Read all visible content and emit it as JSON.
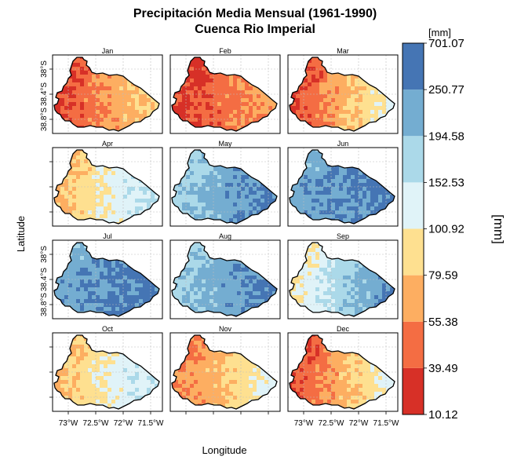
{
  "chart_data": {
    "type": "heatmap",
    "title_lines": [
      "Precipitación Media Mensual (1961-1990)",
      "Cuenca Rio Imperial"
    ],
    "xlabel": "Longitude",
    "ylabel": "Latitude",
    "x_ticks": [
      "73°W",
      "72.5°W",
      "72°W",
      "71.5°W"
    ],
    "y_ticks": [
      "38.8°S",
      "38.4°S",
      "38°S"
    ],
    "panels": [
      "Jan",
      "Feb",
      "Mar",
      "Apr",
      "May",
      "Jun",
      "Jul",
      "Aug",
      "Sep",
      "Oct",
      "Nov",
      "Dec"
    ],
    "grid": "dotted",
    "legend": {
      "position": "right",
      "unit_top": "[mm]",
      "unit_side": "[mm]",
      "breaks": [
        "10.12",
        "39.49",
        "55.38",
        "79.59",
        "100.92",
        "152.53",
        "194.58",
        "250.77",
        "701.07"
      ],
      "colors": [
        "#d73027",
        "#f46d43",
        "#fdae61",
        "#fee090",
        "#e0f3f8",
        "#abd9e9",
        "#74add1",
        "#4575b4"
      ]
    },
    "monthly_class_gradient": {
      "Jan": {
        "west": 0,
        "east": 3
      },
      "Feb": {
        "west": 0,
        "east": 2
      },
      "Mar": {
        "west": 0,
        "east": 4
      },
      "Apr": {
        "west": 2,
        "east": 5
      },
      "May": {
        "west": 5,
        "east": 7
      },
      "Jun": {
        "west": 6,
        "east": 7
      },
      "Jul": {
        "west": 6,
        "east": 7
      },
      "Aug": {
        "west": 5,
        "east": 7
      },
      "Sep": {
        "west": 3,
        "east": 7
      },
      "Oct": {
        "west": 2,
        "east": 5
      },
      "Nov": {
        "west": 1,
        "east": 4
      },
      "Dec": {
        "west": 0,
        "east": 4
      }
    }
  }
}
